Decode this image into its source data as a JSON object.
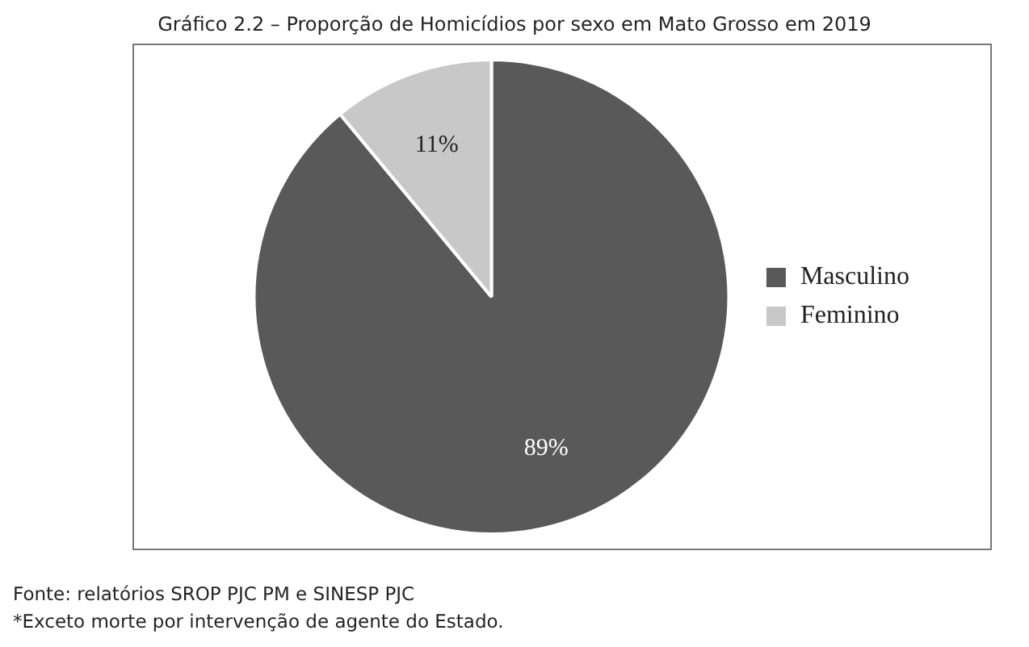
{
  "chart_data": {
    "type": "pie",
    "title": "Gráfico 2.2 – Proporção de Homicídios por sexo em Mato Grosso em 2019",
    "categories": [
      "Masculino",
      "Feminino"
    ],
    "values": [
      89,
      11
    ],
    "value_labels": [
      "89%",
      "11%"
    ],
    "colors": [
      "#595959",
      "#c8c8c8"
    ],
    "legend": "right",
    "annotations": [
      "Fonte: relatórios SROP PJC PM e SINESP PJC",
      "*Exceto morte por intervenção de agente do Estado."
    ]
  }
}
